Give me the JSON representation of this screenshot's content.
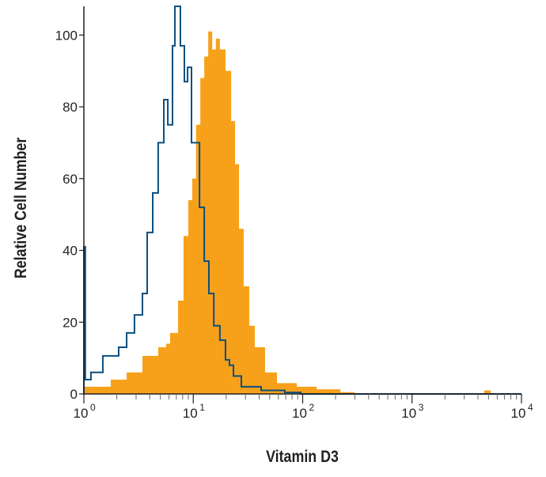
{
  "chart_data": {
    "type": "area",
    "title": "",
    "xlabel": "Vitamin D3",
    "ylabel": "Relative Cell Number",
    "xscale": "log",
    "xlim": [
      1,
      10000
    ],
    "ylim": [
      0,
      108
    ],
    "grid": false,
    "x_ticks": [
      {
        "base": "10",
        "exp": "0",
        "value": 1
      },
      {
        "base": "10",
        "exp": "1",
        "value": 10
      },
      {
        "base": "10",
        "exp": "2",
        "value": 100
      },
      {
        "base": "10",
        "exp": "3",
        "value": 1000
      },
      {
        "base": "10",
        "exp": "4",
        "value": 10000
      }
    ],
    "y_ticks": [
      "0",
      "20",
      "40",
      "60",
      "80",
      "100"
    ],
    "y_tick_values": [
      0,
      20,
      40,
      60,
      80,
      100
    ],
    "series": [
      {
        "style": "filled",
        "color": "#f7a11a",
        "x": [
          1.0,
          1.07,
          1.76,
          2.46,
          3.43,
          4.78,
          5.65,
          6.14,
          7.26,
          8.15,
          9.01,
          9.79,
          10.6,
          11.6,
          12.6,
          13.7,
          14.9,
          16.1,
          17.5,
          19.7,
          22.2,
          24.1,
          26.2,
          28.9,
          32.5,
          36.5,
          45.3,
          58.2,
          88.3,
          134,
          221,
          300,
          3740,
          4570,
          5220,
          10000
        ],
        "y": [
          2,
          2,
          4,
          6,
          10.6,
          13,
          14,
          17,
          26,
          44,
          54,
          60,
          75,
          88,
          94,
          101,
          96,
          99,
          96,
          90,
          76,
          64,
          46,
          30,
          19,
          13,
          6,
          3,
          2,
          1.3,
          0.5,
          0,
          0,
          1,
          0,
          0
        ]
      },
      {
        "style": "outline",
        "color": "#0b4f7f",
        "x": [
          1.0,
          1.0,
          1.03,
          1.16,
          1.49,
          2.08,
          2.46,
          2.9,
          3.43,
          3.79,
          4.26,
          4.78,
          5.38,
          5.85,
          6.46,
          6.79,
          7.62,
          8.29,
          8.87,
          9.63,
          10.5,
          11.4,
          12.6,
          13.9,
          15.4,
          17.5,
          19.7,
          21.4,
          23.3,
          27.5,
          41.7,
          68.7,
          95.9,
          10000
        ],
        "y": [
          0,
          41,
          4,
          6,
          10.6,
          13,
          17,
          22,
          28,
          45,
          56,
          70,
          82,
          75,
          97,
          108,
          97,
          87,
          91,
          70,
          70,
          52,
          37,
          28,
          19,
          15,
          9.5,
          8,
          5,
          2,
          1,
          0.4,
          0,
          0
        ]
      }
    ]
  }
}
